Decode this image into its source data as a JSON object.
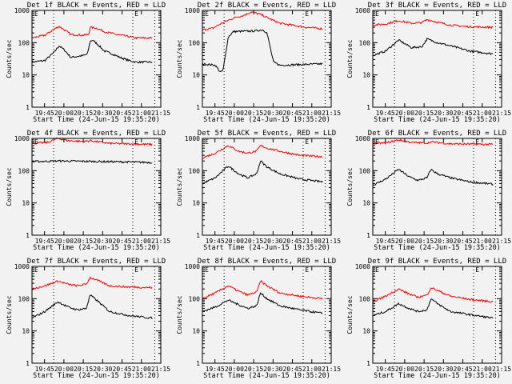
{
  "colors": {
    "background": "#f2f2f2",
    "events": "#000000",
    "lld": "#ff0000",
    "axes": "#000000"
  },
  "chart_data": {
    "type": "line",
    "layout": "3x3 grid",
    "x_unit": "minutes since start",
    "xlim": [
      0,
      99.7
    ],
    "xtick_labels": [
      "19:45",
      "20:00",
      "20:15",
      "20:30",
      "20:45",
      "21:00",
      "21:15"
    ],
    "xtick_minutes": [
      9.7,
      24.7,
      39.7,
      54.7,
      69.7,
      84.7,
      99.7
    ],
    "xlabel": "Start Time (24-Jun-15 19:35:20)",
    "ylabel": "Counts/sec",
    "yscale": "log",
    "ylim": [
      1,
      1000
    ],
    "ytick_labels": [
      "1000",
      "100",
      "10",
      "1"
    ],
    "ytick_values": [
      1000,
      100,
      10,
      1
    ],
    "event_lines_minutes": [
      16.8,
      78,
      95
    ],
    "event_markers": [
      {
        "label": "E",
        "minute": 2.5
      },
      {
        "label": "E",
        "minute": 80
      }
    ],
    "legend": "in title",
    "panels": [
      {
        "title": "Det 1f BLACK = Events, RED = LLD",
        "series": [
          {
            "name": "Events",
            "color": "black",
            "points": [
              [
                0,
                25
              ],
              [
                10,
                28
              ],
              [
                17,
                50
              ],
              [
                21,
                80
              ],
              [
                25,
                60
              ],
              [
                30,
                35
              ],
              [
                40,
                40
              ],
              [
                43,
                45
              ],
              [
                45,
                110
              ],
              [
                47,
                120
              ],
              [
                52,
                80
              ],
              [
                56,
                55
              ],
              [
                62,
                45
              ],
              [
                68,
                35
              ],
              [
                75,
                28
              ],
              [
                80,
                25
              ],
              [
                93,
                25
              ]
            ]
          },
          {
            "name": "LLD",
            "color": "red",
            "points": [
              [
                0,
                140
              ],
              [
                10,
                170
              ],
              [
                17,
                260
              ],
              [
                21,
                320
              ],
              [
                25,
                250
              ],
              [
                30,
                180
              ],
              [
                40,
                170
              ],
              [
                44,
                180
              ],
              [
                45,
                300
              ],
              [
                50,
                280
              ],
              [
                56,
                220
              ],
              [
                65,
                180
              ],
              [
                73,
                160
              ],
              [
                80,
                140
              ],
              [
                93,
                140
              ]
            ]
          }
        ]
      },
      {
        "title": "Det 2f BLACK = Events, RED = LLD",
        "series": [
          {
            "name": "Events",
            "color": "black",
            "points": [
              [
                0,
                22
              ],
              [
                10,
                20
              ],
              [
                14,
                12
              ],
              [
                16,
                14
              ],
              [
                20,
                150
              ],
              [
                24,
                220
              ],
              [
                40,
                230
              ],
              [
                47,
                250
              ],
              [
                50,
                200
              ],
              [
                55,
                25
              ],
              [
                60,
                20
              ],
              [
                93,
                22
              ]
            ]
          },
          {
            "name": "LLD",
            "color": "red",
            "points": [
              [
                0,
                250
              ],
              [
                8,
                280
              ],
              [
                15,
                400
              ],
              [
                25,
                600
              ],
              [
                32,
                700
              ],
              [
                38,
                900
              ],
              [
                45,
                750
              ],
              [
                52,
                550
              ],
              [
                60,
                400
              ],
              [
                80,
                300
              ],
              [
                93,
                270
              ]
            ]
          }
        ]
      },
      {
        "title": "Det 3f BLACK = Events, RED = LLD",
        "series": [
          {
            "name": "Events",
            "color": "black",
            "points": [
              [
                0,
                40
              ],
              [
                10,
                55
              ],
              [
                20,
                120
              ],
              [
                30,
                70
              ],
              [
                38,
                75
              ],
              [
                42,
                130
              ],
              [
                50,
                100
              ],
              [
                60,
                80
              ],
              [
                75,
                55
              ],
              [
                93,
                45
              ]
            ]
          },
          {
            "name": "LLD",
            "color": "red",
            "points": [
              [
                0,
                350
              ],
              [
                10,
                380
              ],
              [
                20,
                480
              ],
              [
                30,
                400
              ],
              [
                38,
                420
              ],
              [
                42,
                520
              ],
              [
                50,
                430
              ],
              [
                60,
                350
              ],
              [
                75,
                310
              ],
              [
                93,
                300
              ]
            ]
          }
        ]
      },
      {
        "title": "Det 4f BLACK = Events, RED = LLD",
        "series": [
          {
            "name": "Events",
            "color": "black",
            "points": [
              [
                0,
                190
              ],
              [
                20,
                200
              ],
              [
                40,
                195
              ],
              [
                60,
                190
              ],
              [
                93,
                180
              ]
            ]
          },
          {
            "name": "LLD",
            "color": "red",
            "points": [
              [
                0,
                700
              ],
              [
                12,
                750
              ],
              [
                20,
                1000
              ],
              [
                28,
                850
              ],
              [
                40,
                800
              ],
              [
                45,
                850
              ],
              [
                60,
                700
              ],
              [
                93,
                650
              ]
            ]
          }
        ]
      },
      {
        "title": "Det 5f BLACK = Events, RED = LLD",
        "series": [
          {
            "name": "Events",
            "color": "black",
            "points": [
              [
                0,
                40
              ],
              [
                10,
                60
              ],
              [
                20,
                140
              ],
              [
                28,
                80
              ],
              [
                35,
                60
              ],
              [
                42,
                80
              ],
              [
                45,
                200
              ],
              [
                50,
                130
              ],
              [
                60,
                80
              ],
              [
                75,
                55
              ],
              [
                93,
                45
              ]
            ]
          },
          {
            "name": "LLD",
            "color": "red",
            "points": [
              [
                0,
                250
              ],
              [
                10,
                350
              ],
              [
                20,
                600
              ],
              [
                28,
                400
              ],
              [
                35,
                350
              ],
              [
                42,
                400
              ],
              [
                45,
                600
              ],
              [
                50,
                500
              ],
              [
                60,
                400
              ],
              [
                75,
                300
              ],
              [
                93,
                270
              ]
            ]
          }
        ]
      },
      {
        "title": "Det 6f BLACK = Events, RED = LLD",
        "series": [
          {
            "name": "Events",
            "color": "black",
            "points": [
              [
                0,
                35
              ],
              [
                10,
                55
              ],
              [
                20,
                110
              ],
              [
                28,
                65
              ],
              [
                35,
                50
              ],
              [
                42,
                60
              ],
              [
                45,
                110
              ],
              [
                50,
                80
              ],
              [
                60,
                60
              ],
              [
                75,
                45
              ],
              [
                93,
                38
              ]
            ]
          },
          {
            "name": "LLD",
            "color": "red",
            "points": [
              [
                0,
                700
              ],
              [
                10,
                720
              ],
              [
                20,
                900
              ],
              [
                30,
                750
              ],
              [
                42,
                720
              ],
              [
                45,
                780
              ],
              [
                60,
                680
              ],
              [
                93,
                650
              ]
            ]
          }
        ]
      },
      {
        "title": "Det 7f BLACK = Events, RED = LLD",
        "series": [
          {
            "name": "Events",
            "color": "black",
            "points": [
              [
                0,
                25
              ],
              [
                10,
                40
              ],
              [
                20,
                80
              ],
              [
                28,
                55
              ],
              [
                35,
                45
              ],
              [
                42,
                50
              ],
              [
                45,
                130
              ],
              [
                50,
                90
              ],
              [
                60,
                40
              ],
              [
                75,
                30
              ],
              [
                93,
                25
              ]
            ]
          },
          {
            "name": "LLD",
            "color": "red",
            "points": [
              [
                0,
                200
              ],
              [
                10,
                250
              ],
              [
                20,
                350
              ],
              [
                28,
                280
              ],
              [
                35,
                250
              ],
              [
                42,
                280
              ],
              [
                45,
                450
              ],
              [
                50,
                380
              ],
              [
                60,
                250
              ],
              [
                75,
                230
              ],
              [
                93,
                220
              ]
            ]
          }
        ]
      },
      {
        "title": "Det 8f BLACK = Events, RED = LLD",
        "series": [
          {
            "name": "Events",
            "color": "black",
            "points": [
              [
                0,
                40
              ],
              [
                10,
                55
              ],
              [
                20,
                90
              ],
              [
                28,
                65
              ],
              [
                35,
                50
              ],
              [
                42,
                60
              ],
              [
                45,
                150
              ],
              [
                50,
                100
              ],
              [
                60,
                60
              ],
              [
                75,
                45
              ],
              [
                93,
                35
              ]
            ]
          },
          {
            "name": "LLD",
            "color": "red",
            "points": [
              [
                0,
                100
              ],
              [
                10,
                150
              ],
              [
                20,
                250
              ],
              [
                28,
                170
              ],
              [
                35,
                130
              ],
              [
                42,
                160
              ],
              [
                45,
                350
              ],
              [
                50,
                250
              ],
              [
                60,
                150
              ],
              [
                75,
                120
              ],
              [
                93,
                100
              ]
            ]
          }
        ]
      },
      {
        "title": "Det 9f BLACK = Events, RED = LLD",
        "series": [
          {
            "name": "Events",
            "color": "black",
            "points": [
              [
                0,
                30
              ],
              [
                10,
                40
              ],
              [
                20,
                70
              ],
              [
                28,
                50
              ],
              [
                35,
                40
              ],
              [
                42,
                45
              ],
              [
                45,
                100
              ],
              [
                50,
                70
              ],
              [
                60,
                40
              ],
              [
                75,
                32
              ],
              [
                93,
                25
              ]
            ]
          },
          {
            "name": "LLD",
            "color": "red",
            "points": [
              [
                0,
                80
              ],
              [
                10,
                120
              ],
              [
                20,
                200
              ],
              [
                28,
                140
              ],
              [
                35,
                110
              ],
              [
                42,
                130
              ],
              [
                45,
                220
              ],
              [
                50,
                180
              ],
              [
                60,
                120
              ],
              [
                75,
                95
              ],
              [
                93,
                80
              ]
            ]
          }
        ]
      }
    ]
  }
}
